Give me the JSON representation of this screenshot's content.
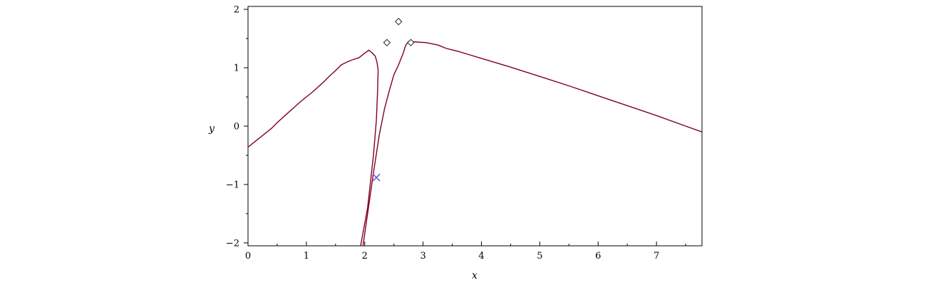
{
  "chart_data": {
    "type": "line",
    "title": "",
    "xlabel": "x",
    "ylabel": "y",
    "xlim": [
      0,
      7.78
    ],
    "ylim": [
      -2.05,
      2.05
    ],
    "x_ticks": [
      0,
      1,
      2,
      3,
      4,
      5,
      6,
      7
    ],
    "x_tick_labels": [
      "0",
      "1",
      "2",
      "3",
      "4",
      "5",
      "6",
      "7"
    ],
    "y_ticks": [
      -2,
      -1,
      0,
      1,
      2
    ],
    "y_tick_labels": [
      "−2",
      "−1",
      "0",
      "1",
      "2"
    ],
    "grid": false,
    "frame": true,
    "colors": {
      "curve": "#800020",
      "cross_marker": "#5a5ad6",
      "diamond_marker": "#444444",
      "axes": "#000000"
    },
    "series": [
      {
        "kind": "curve",
        "points": [
          [
            0.0,
            -0.36
          ],
          [
            0.1,
            -0.28
          ],
          [
            0.2,
            -0.2
          ],
          [
            0.3,
            -0.12
          ],
          [
            0.4,
            -0.04
          ],
          [
            0.5,
            0.06
          ],
          [
            0.6,
            0.15
          ],
          [
            0.7,
            0.24
          ],
          [
            0.8,
            0.33
          ],
          [
            0.9,
            0.42
          ],
          [
            1.0,
            0.5
          ],
          [
            1.1,
            0.58
          ],
          [
            1.2,
            0.67
          ],
          [
            1.3,
            0.76
          ],
          [
            1.4,
            0.86
          ],
          [
            1.5,
            0.95
          ],
          [
            1.6,
            1.05
          ],
          [
            1.7,
            1.1
          ],
          [
            1.8,
            1.14
          ],
          [
            1.9,
            1.17
          ],
          [
            2.0,
            1.25
          ],
          [
            2.07,
            1.3
          ],
          [
            2.12,
            1.26
          ],
          [
            2.18,
            1.2
          ],
          [
            2.21,
            1.1
          ],
          [
            2.23,
            0.96
          ],
          [
            2.22,
            0.6
          ],
          [
            2.2,
            0.1
          ],
          [
            2.15,
            -0.5
          ],
          [
            2.05,
            -1.4
          ],
          [
            1.93,
            -2.05
          ]
        ]
      },
      {
        "kind": "curve",
        "points": [
          [
            1.97,
            -2.05
          ],
          [
            2.05,
            -1.5
          ],
          [
            2.15,
            -0.8
          ],
          [
            2.25,
            -0.15
          ],
          [
            2.34,
            0.3
          ],
          [
            2.42,
            0.6
          ],
          [
            2.5,
            0.88
          ],
          [
            2.58,
            1.05
          ],
          [
            2.66,
            1.25
          ],
          [
            2.7,
            1.38
          ],
          [
            2.75,
            1.45
          ],
          [
            2.9,
            1.44
          ],
          [
            3.05,
            1.43
          ],
          [
            3.25,
            1.39
          ],
          [
            3.4,
            1.33
          ],
          [
            3.6,
            1.28
          ],
          [
            3.8,
            1.22
          ],
          [
            4.0,
            1.16
          ],
          [
            4.5,
            1.01
          ],
          [
            5.0,
            0.85
          ],
          [
            5.5,
            0.69
          ],
          [
            6.0,
            0.52
          ],
          [
            6.5,
            0.35
          ],
          [
            7.0,
            0.18
          ],
          [
            7.5,
            0.0
          ],
          [
            7.78,
            -0.1
          ]
        ]
      }
    ],
    "markers": [
      {
        "shape": "cross",
        "x": 2.2,
        "y": -0.88
      },
      {
        "shape": "diamond",
        "x": 2.38,
        "y": 1.43
      },
      {
        "shape": "diamond",
        "x": 2.58,
        "y": 1.79
      },
      {
        "shape": "diamond",
        "x": 2.79,
        "y": 1.43
      }
    ]
  }
}
